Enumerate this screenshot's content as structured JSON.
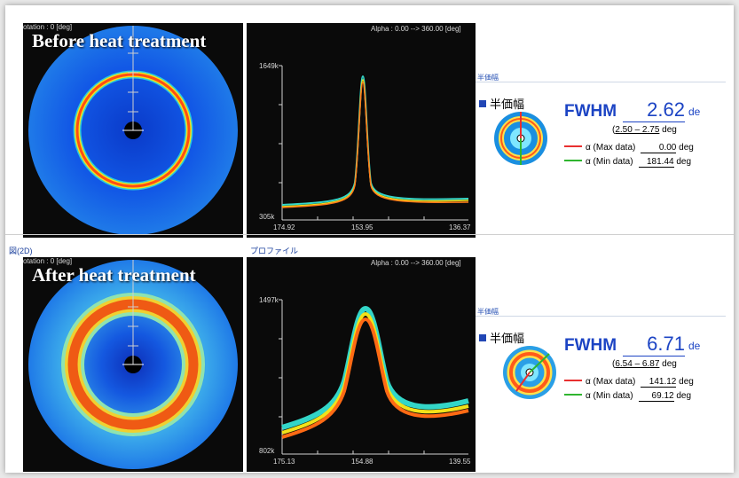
{
  "panels": [
    {
      "title": "Before heat treatment",
      "section_label": "",
      "profile_label": "",
      "rotation_label": "otation : 0 [deg]",
      "alpha_label": "Alpha : 0.00 --> 360.00 [deg]",
      "y_top": "1649k",
      "y_bottom": "305k",
      "x_ticks": [
        "174.92",
        "153.95",
        "136.37"
      ],
      "result_small": "半価幅",
      "result_header": "半価幅",
      "fwhm_key": "FWHM",
      "fwhm_value": "2.62",
      "fwhm_unit": "de",
      "range_prefix": "(",
      "range_values": "2.50 – 2.75",
      "range_unit": "deg",
      "max_label": "α (Max data)",
      "max_value": "0.00",
      "min_label": "α (Min data)",
      "min_value": "181.44",
      "unit": "deg"
    },
    {
      "title": "After heat treatment",
      "section_label": "図(2D)",
      "profile_label": "プロファイル",
      "rotation_label": "otation : 0 [deg]",
      "alpha_label": "Alpha : 0.00 --> 360.00 [deg]",
      "y_top": "1497k",
      "y_bottom": "802k",
      "x_ticks": [
        "175.13",
        "154.88",
        "139.55"
      ],
      "result_small": "半価幅",
      "result_header": "半価幅",
      "fwhm_key": "FWHM",
      "fwhm_value": "6.71",
      "fwhm_unit": "de",
      "range_prefix": "(",
      "range_values": "6.54 – 6.87",
      "range_unit": "deg",
      "max_label": "α (Max data)",
      "max_value": "141.12",
      "min_label": "α (Min data)",
      "min_value": "69.12",
      "unit": "deg"
    }
  ],
  "colors": {
    "ring_bg": "#1565e0",
    "peak_orange": "#ff7a1a",
    "peak_cyan": "#33d6c8",
    "max_line": "#e83030",
    "min_line": "#2fb52f",
    "fwhm_blue": "#1c44c4"
  }
}
